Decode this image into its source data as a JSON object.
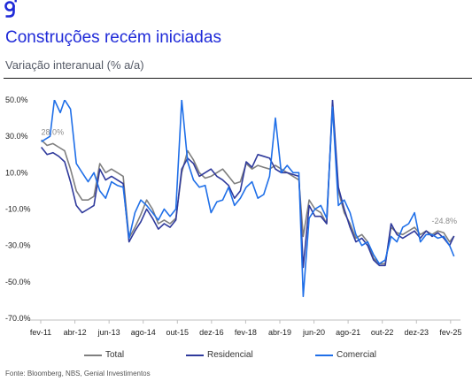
{
  "header": {
    "title": "Construções recém iniciadas",
    "subtitle": "Variação interanual (% a/a)"
  },
  "footer": {
    "source": "Fonte: Bloomberg, NBS, Genial Investimentos"
  },
  "colors": {
    "title": "#1f2ad8",
    "logo": "#1f2ad8",
    "total": "#7f7f7f",
    "residencial": "#2f3a9c",
    "comercial": "#1f6fe8"
  },
  "logo_icon": "genial-g-logo-icon",
  "chart_data": {
    "type": "line",
    "ylim": [
      -70,
      50
    ],
    "yticks": [
      50,
      30,
      10,
      -10,
      -30,
      -50,
      -70
    ],
    "ytick_labels": [
      "50.0%",
      "30.0%",
      "10.0%",
      "-10.0%",
      "-30.0%",
      "-50.0%",
      "-70.0%"
    ],
    "xlim": [
      2011.083,
      2025.3
    ],
    "xticks": [
      2011.083,
      2012.25,
      2013.417,
      2014.583,
      2015.75,
      2016.917,
      2018.083,
      2019.25,
      2020.417,
      2021.583,
      2022.75,
      2023.917,
      2025.083
    ],
    "xtick_labels": [
      "fev-11",
      "abr-12",
      "jun-13",
      "ago-14",
      "out-15",
      "dez-16",
      "fev-18",
      "abr-19",
      "jun-20",
      "ago-21",
      "out-22",
      "dez-23",
      "fev-25"
    ],
    "legend_position": "bottom",
    "annotations": [
      {
        "text": "28.0%",
        "x": 2011.1,
        "y": 28.0,
        "anchor": "start",
        "dy": -6
      },
      {
        "text": "-24.8%",
        "x": 2025.3,
        "y": -24.8,
        "anchor": "end",
        "dy": -14
      }
    ],
    "series": [
      {
        "name": "Total",
        "color": "#7f7f7f",
        "points": [
          [
            2011.1,
            28
          ],
          [
            2011.3,
            25
          ],
          [
            2011.5,
            26
          ],
          [
            2011.7,
            24
          ],
          [
            2011.9,
            22
          ],
          [
            2012.1,
            12
          ],
          [
            2012.3,
            0
          ],
          [
            2012.5,
            -5
          ],
          [
            2012.7,
            -5
          ],
          [
            2012.9,
            -3
          ],
          [
            2013.1,
            15
          ],
          [
            2013.3,
            10
          ],
          [
            2013.5,
            12
          ],
          [
            2013.7,
            10
          ],
          [
            2013.9,
            8
          ],
          [
            2014.1,
            -26
          ],
          [
            2014.3,
            -20
          ],
          [
            2014.5,
            -13
          ],
          [
            2014.7,
            -5
          ],
          [
            2014.9,
            -10
          ],
          [
            2015.1,
            -18
          ],
          [
            2015.3,
            -16
          ],
          [
            2015.5,
            -18
          ],
          [
            2015.7,
            -15
          ],
          [
            2015.9,
            10
          ],
          [
            2016.1,
            22
          ],
          [
            2016.3,
            17
          ],
          [
            2016.5,
            10
          ],
          [
            2016.7,
            7
          ],
          [
            2016.9,
            8
          ],
          [
            2017.1,
            10
          ],
          [
            2017.3,
            12
          ],
          [
            2017.5,
            8
          ],
          [
            2017.7,
            4
          ],
          [
            2017.9,
            5
          ],
          [
            2018.1,
            15
          ],
          [
            2018.3,
            12
          ],
          [
            2018.5,
            14
          ],
          [
            2018.7,
            13
          ],
          [
            2018.9,
            12
          ],
          [
            2019.1,
            14
          ],
          [
            2019.3,
            12
          ],
          [
            2019.5,
            10
          ],
          [
            2019.7,
            8
          ],
          [
            2019.9,
            6
          ],
          [
            2020.05,
            -25
          ],
          [
            2020.25,
            -5
          ],
          [
            2020.45,
            -10
          ],
          [
            2020.65,
            -12
          ],
          [
            2020.85,
            -18
          ],
          [
            2021.05,
            48
          ],
          [
            2021.25,
            0
          ],
          [
            2021.45,
            -12
          ],
          [
            2021.65,
            -18
          ],
          [
            2021.85,
            -26
          ],
          [
            2022.05,
            -24
          ],
          [
            2022.25,
            -28
          ],
          [
            2022.45,
            -37
          ],
          [
            2022.65,
            -40
          ],
          [
            2022.85,
            -40
          ],
          [
            2023.05,
            -20
          ],
          [
            2023.25,
            -23
          ],
          [
            2023.45,
            -24
          ],
          [
            2023.65,
            -22
          ],
          [
            2023.85,
            -20
          ],
          [
            2024.05,
            -24
          ],
          [
            2024.25,
            -22
          ],
          [
            2024.45,
            -24
          ],
          [
            2024.65,
            -22
          ],
          [
            2024.85,
            -23
          ],
          [
            2025.05,
            -28
          ],
          [
            2025.2,
            -24.8
          ]
        ]
      },
      {
        "name": "Residencial",
        "color": "#2f3a9c",
        "points": [
          [
            2011.1,
            24
          ],
          [
            2011.3,
            20
          ],
          [
            2011.5,
            21
          ],
          [
            2011.7,
            19
          ],
          [
            2011.9,
            16
          ],
          [
            2012.1,
            5
          ],
          [
            2012.3,
            -8
          ],
          [
            2012.5,
            -12
          ],
          [
            2012.7,
            -10
          ],
          [
            2012.9,
            -8
          ],
          [
            2013.1,
            12
          ],
          [
            2013.3,
            6
          ],
          [
            2013.5,
            8
          ],
          [
            2013.7,
            6
          ],
          [
            2013.9,
            4
          ],
          [
            2014.1,
            -28
          ],
          [
            2014.3,
            -22
          ],
          [
            2014.5,
            -17
          ],
          [
            2014.7,
            -10
          ],
          [
            2014.9,
            -15
          ],
          [
            2015.1,
            -21
          ],
          [
            2015.3,
            -18
          ],
          [
            2015.5,
            -20
          ],
          [
            2015.7,
            -16
          ],
          [
            2015.9,
            12
          ],
          [
            2016.1,
            18
          ],
          [
            2016.3,
            15
          ],
          [
            2016.5,
            8
          ],
          [
            2016.7,
            10
          ],
          [
            2016.9,
            12
          ],
          [
            2017.1,
            8
          ],
          [
            2017.3,
            6
          ],
          [
            2017.5,
            3
          ],
          [
            2017.7,
            -4
          ],
          [
            2017.9,
            0
          ],
          [
            2018.1,
            16
          ],
          [
            2018.3,
            13
          ],
          [
            2018.5,
            20
          ],
          [
            2018.7,
            19
          ],
          [
            2018.9,
            18
          ],
          [
            2019.1,
            12
          ],
          [
            2019.3,
            10
          ],
          [
            2019.5,
            10
          ],
          [
            2019.7,
            9
          ],
          [
            2019.9,
            8
          ],
          [
            2020.05,
            -42
          ],
          [
            2020.25,
            -8
          ],
          [
            2020.45,
            -14
          ],
          [
            2020.65,
            -14
          ],
          [
            2020.85,
            -18
          ],
          [
            2021.05,
            50
          ],
          [
            2021.25,
            2
          ],
          [
            2021.45,
            -10
          ],
          [
            2021.65,
            -20
          ],
          [
            2021.85,
            -28
          ],
          [
            2022.05,
            -26
          ],
          [
            2022.25,
            -30
          ],
          [
            2022.45,
            -38
          ],
          [
            2022.65,
            -41
          ],
          [
            2022.85,
            -41
          ],
          [
            2023.05,
            -18
          ],
          [
            2023.25,
            -24
          ],
          [
            2023.45,
            -26
          ],
          [
            2023.65,
            -24
          ],
          [
            2023.85,
            -22
          ],
          [
            2024.05,
            -26
          ],
          [
            2024.25,
            -22
          ],
          [
            2024.45,
            -25
          ],
          [
            2024.65,
            -23
          ],
          [
            2024.85,
            -26
          ],
          [
            2025.05,
            -30
          ],
          [
            2025.2,
            -24.8
          ]
        ]
      },
      {
        "name": "Comercial",
        "color": "#1f6fe8",
        "points": [
          [
            2011.1,
            27
          ],
          [
            2011.4,
            30
          ],
          [
            2011.55,
            50
          ],
          [
            2011.75,
            43
          ],
          [
            2011.9,
            50
          ],
          [
            2012.1,
            45
          ],
          [
            2012.3,
            15
          ],
          [
            2012.5,
            10
          ],
          [
            2012.7,
            5
          ],
          [
            2012.9,
            10
          ],
          [
            2013.1,
            0
          ],
          [
            2013.3,
            -4
          ],
          [
            2013.5,
            5
          ],
          [
            2013.7,
            3
          ],
          [
            2013.9,
            2
          ],
          [
            2014.1,
            -26
          ],
          [
            2014.3,
            -12
          ],
          [
            2014.5,
            -5
          ],
          [
            2014.7,
            -8
          ],
          [
            2014.9,
            -12
          ],
          [
            2015.1,
            -16
          ],
          [
            2015.3,
            -10
          ],
          [
            2015.5,
            -14
          ],
          [
            2015.7,
            -10
          ],
          [
            2015.9,
            50
          ],
          [
            2016.1,
            16
          ],
          [
            2016.3,
            6
          ],
          [
            2016.5,
            2
          ],
          [
            2016.7,
            3
          ],
          [
            2016.9,
            -12
          ],
          [
            2017.1,
            -6
          ],
          [
            2017.3,
            -5
          ],
          [
            2017.5,
            2
          ],
          [
            2017.7,
            -8
          ],
          [
            2017.9,
            -4
          ],
          [
            2018.1,
            2
          ],
          [
            2018.3,
            5
          ],
          [
            2018.5,
            -4
          ],
          [
            2018.7,
            -2
          ],
          [
            2018.9,
            8
          ],
          [
            2019.1,
            40
          ],
          [
            2019.3,
            10
          ],
          [
            2019.5,
            14
          ],
          [
            2019.7,
            10
          ],
          [
            2019.9,
            10
          ],
          [
            2020.05,
            -58
          ],
          [
            2020.25,
            -15
          ],
          [
            2020.45,
            -10
          ],
          [
            2020.65,
            -8
          ],
          [
            2020.85,
            -15
          ],
          [
            2021.05,
            46
          ],
          [
            2021.25,
            -8
          ],
          [
            2021.45,
            -5
          ],
          [
            2021.65,
            -12
          ],
          [
            2021.85,
            -24
          ],
          [
            2022.05,
            -30
          ],
          [
            2022.25,
            -28
          ],
          [
            2022.45,
            -35
          ],
          [
            2022.65,
            -40
          ],
          [
            2022.85,
            -38
          ],
          [
            2023.05,
            -25
          ],
          [
            2023.25,
            -28
          ],
          [
            2023.45,
            -20
          ],
          [
            2023.65,
            -18
          ],
          [
            2023.85,
            -12
          ],
          [
            2024.05,
            -28
          ],
          [
            2024.25,
            -24
          ],
          [
            2024.45,
            -24
          ],
          [
            2024.65,
            -26
          ],
          [
            2024.85,
            -25
          ],
          [
            2025.05,
            -30
          ],
          [
            2025.2,
            -36
          ]
        ]
      }
    ]
  }
}
